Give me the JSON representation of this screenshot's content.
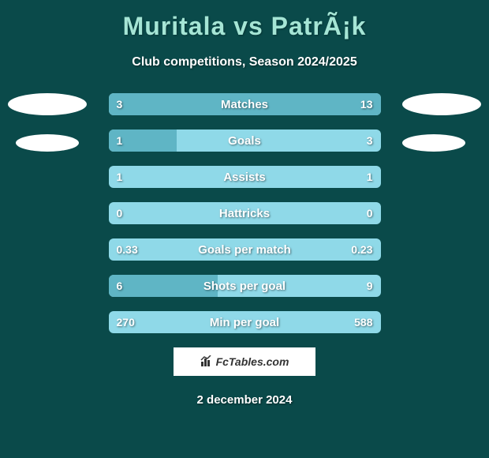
{
  "title": "Muritala vs PatrÃ¡k",
  "subtitle": "Club competitions, Season 2024/2025",
  "background_color": "#0a4a4a",
  "title_color": "#a5e5d5",
  "text_color": "#ffffff",
  "bar_bg_color": "#8fd9e8",
  "bar_fill_color": "#5fb5c5",
  "stats": [
    {
      "label": "Matches",
      "left_value": "3",
      "right_value": "13",
      "left_pct": 18.75,
      "right_pct": 81.25
    },
    {
      "label": "Goals",
      "left_value": "1",
      "right_value": "3",
      "left_pct": 25,
      "right_pct": 0
    },
    {
      "label": "Assists",
      "left_value": "1",
      "right_value": "1",
      "left_pct": 0,
      "right_pct": 0
    },
    {
      "label": "Hattricks",
      "left_value": "0",
      "right_value": "0",
      "left_pct": 0,
      "right_pct": 0
    },
    {
      "label": "Goals per match",
      "left_value": "0.33",
      "right_value": "0.23",
      "left_pct": 0,
      "right_pct": 0
    },
    {
      "label": "Shots per goal",
      "left_value": "6",
      "right_value": "9",
      "left_pct": 40,
      "right_pct": 0
    },
    {
      "label": "Min per goal",
      "left_value": "270",
      "right_value": "588",
      "left_pct": 0,
      "right_pct": 0
    }
  ],
  "watermark": "FcTables.com",
  "date": "2 december 2024"
}
